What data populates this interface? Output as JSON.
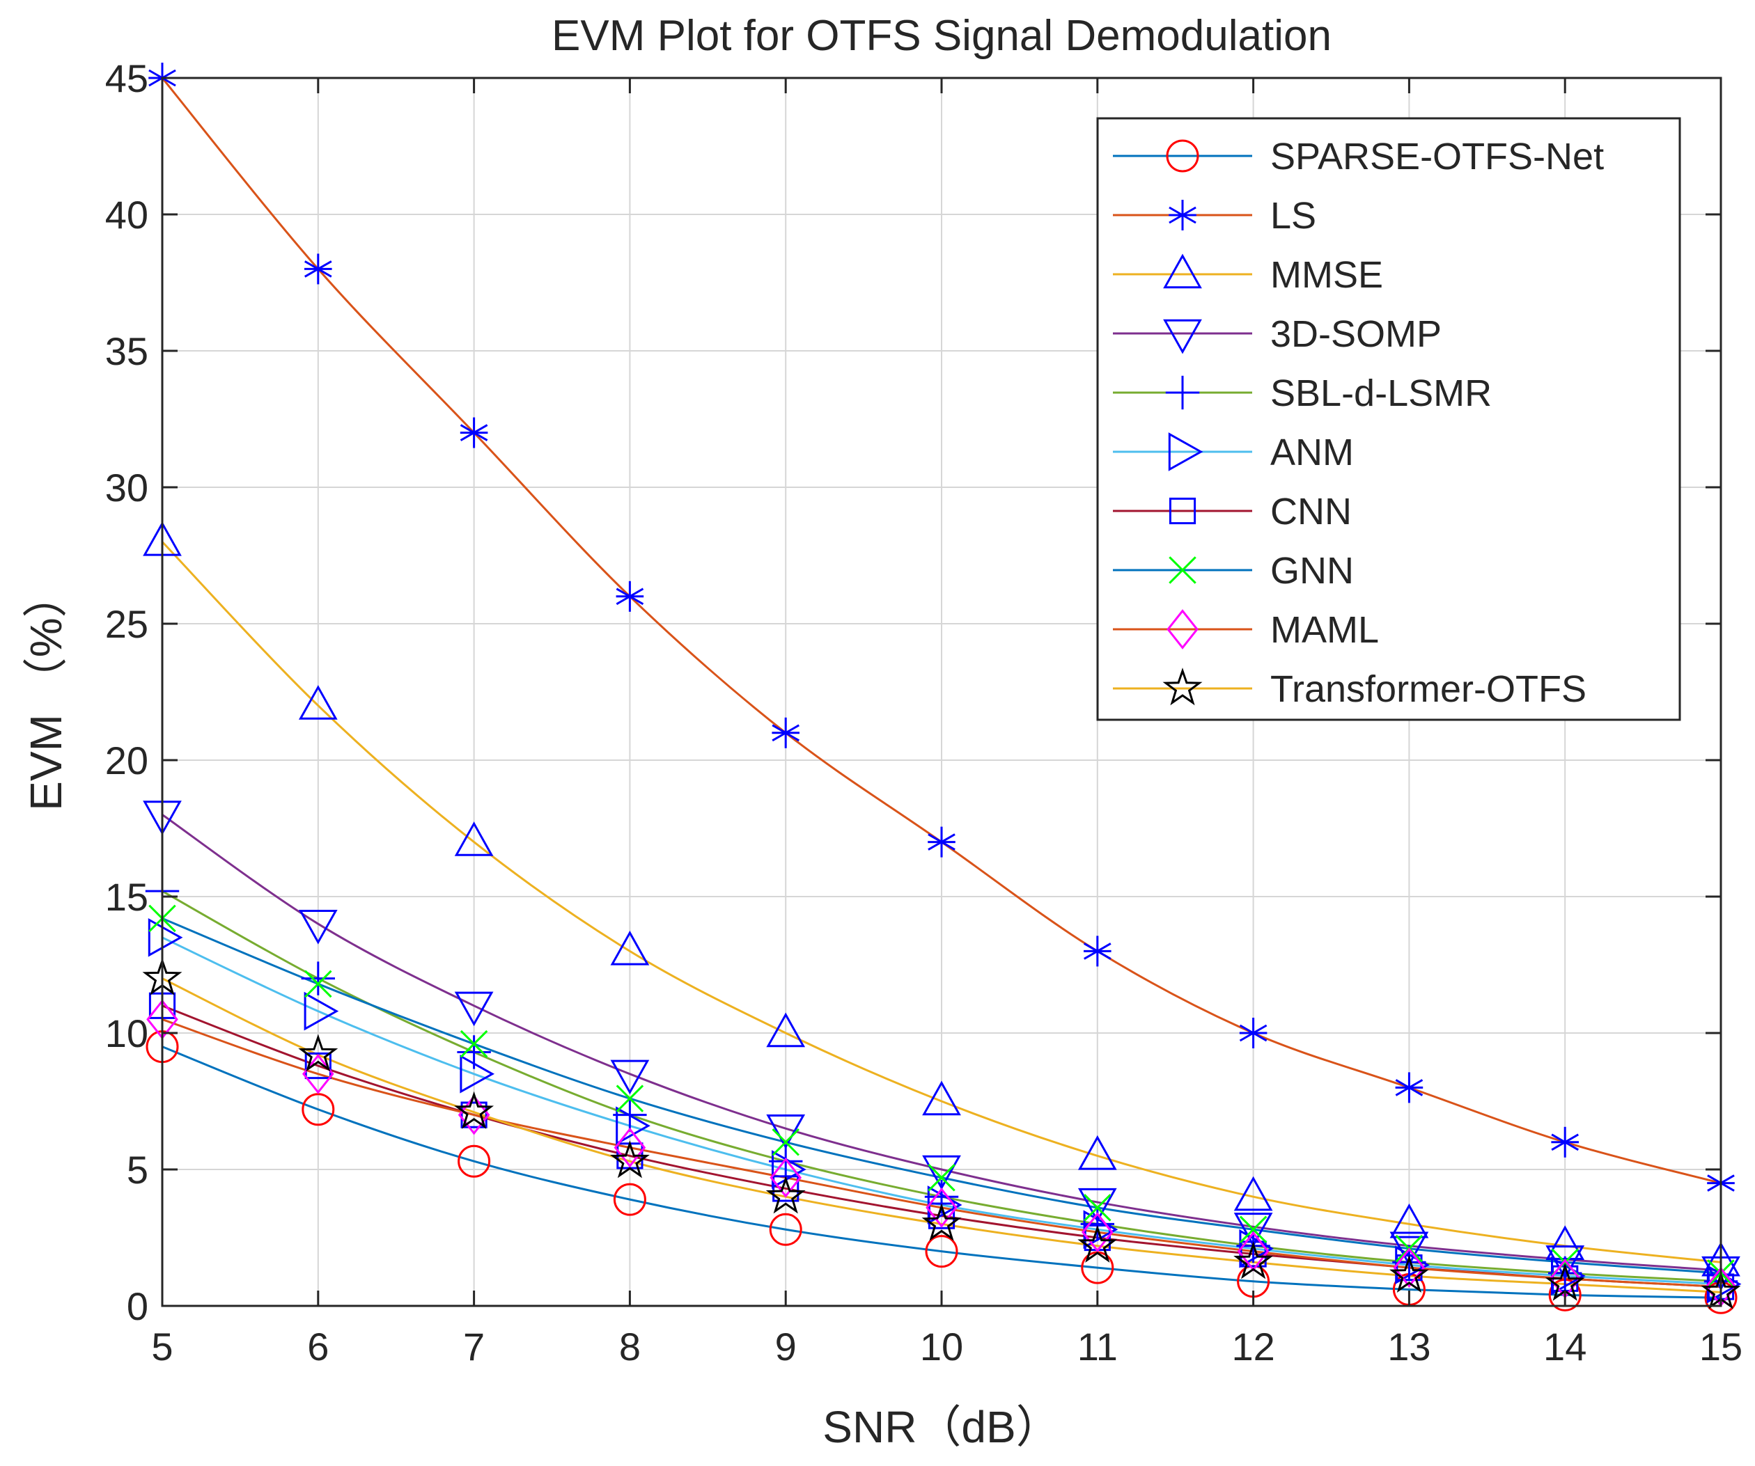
{
  "chart_data": {
    "type": "line",
    "title": "EVM Plot for OTFS Signal Demodulation",
    "xlabel": "SNR（dB）",
    "ylabel": "EVM （%）",
    "x": [
      5,
      6,
      7,
      8,
      9,
      10,
      11,
      12,
      13,
      14,
      15
    ],
    "xlim": [
      5,
      15
    ],
    "ylim": [
      0,
      45
    ],
    "xticks": [
      5,
      6,
      7,
      8,
      9,
      10,
      11,
      12,
      13,
      14,
      15
    ],
    "yticks": [
      0,
      5,
      10,
      15,
      20,
      25,
      30,
      35,
      40,
      45
    ],
    "grid": true,
    "legend_position": "top-right",
    "series": [
      {
        "name": " SPARSE-OTFS-Net",
        "color": "#0072BD",
        "marker": "circle",
        "marker_color": "#FF0000",
        "values": [
          9.5,
          7.2,
          5.3,
          3.9,
          2.8,
          2.0,
          1.4,
          0.9,
          0.6,
          0.4,
          0.3
        ]
      },
      {
        "name": "LS",
        "color": "#D95319",
        "marker": "asterisk",
        "marker_color": "#0000FF",
        "values": [
          45,
          38,
          32,
          26,
          21,
          17,
          13,
          10,
          8,
          6,
          4.5
        ]
      },
      {
        "name": "MMSE",
        "color": "#EDB120",
        "marker": "triangle-up",
        "marker_color": "#0000FF",
        "values": [
          28,
          22,
          17,
          13,
          10,
          7.5,
          5.5,
          4.0,
          3.0,
          2.2,
          1.6
        ]
      },
      {
        "name": "3D-SOMP",
        "color": "#7E2F8E",
        "marker": "triangle-down",
        "marker_color": "#0000FF",
        "values": [
          18,
          14,
          11,
          8.5,
          6.5,
          5.0,
          3.8,
          2.9,
          2.2,
          1.7,
          1.3
        ]
      },
      {
        "name": "SBL-d-LSMR",
        "color": "#77AC30",
        "marker": "plus",
        "marker_color": "#0000FF",
        "values": [
          15.2,
          12.0,
          9.3,
          7.0,
          5.3,
          4.0,
          3.0,
          2.2,
          1.6,
          1.2,
          0.9
        ]
      },
      {
        "name": "ANM",
        "color": "#4DBEEE",
        "marker": "triangle-right",
        "marker_color": "#0000FF",
        "values": [
          13.5,
          10.8,
          8.5,
          6.6,
          5.0,
          3.7,
          2.8,
          2.1,
          1.5,
          1.1,
          0.8
        ]
      },
      {
        "name": "CNN",
        "color": "#A2142F",
        "marker": "square",
        "marker_color": "#0000FF",
        "values": [
          11.0,
          8.8,
          7.0,
          5.5,
          4.3,
          3.3,
          2.5,
          1.9,
          1.4,
          1.0,
          0.7
        ]
      },
      {
        "name": "GNN",
        "color": "#0072BD",
        "marker": "x",
        "marker_color": "#00FF00",
        "values": [
          14.2,
          11.8,
          9.6,
          7.6,
          6.0,
          4.7,
          3.6,
          2.8,
          2.1,
          1.6,
          1.2
        ]
      },
      {
        "name": "MAML",
        "color": "#D95319",
        "marker": "diamond",
        "marker_color": "#FF00FF",
        "values": [
          10.5,
          8.5,
          7.0,
          5.8,
          4.7,
          3.6,
          2.7,
          2.0,
          1.4,
          1.0,
          0.7
        ]
      },
      {
        "name": "Transformer-OTFS",
        "color": "#EDB120",
        "marker": "pentagram",
        "marker_color": "#000000",
        "values": [
          12.0,
          9.2,
          7.1,
          5.3,
          4.0,
          3.0,
          2.2,
          1.6,
          1.1,
          0.8,
          0.5
        ]
      }
    ]
  }
}
